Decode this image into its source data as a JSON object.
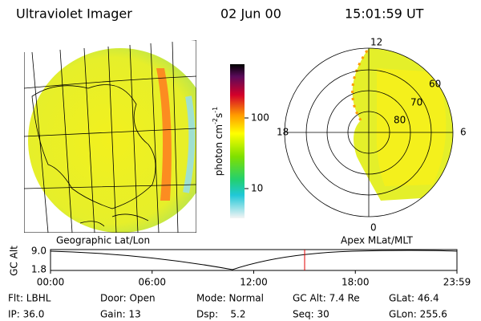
{
  "header": {
    "instrument": "Ultraviolet Imager",
    "date": "02 Jun 00",
    "time": "15:01:59 UT"
  },
  "colorbar": {
    "label": "photon cm",
    "exp1": "-2",
    "unit2": "s",
    "exp2": "-1",
    "ticks": [
      "100",
      "10"
    ]
  },
  "polar": {
    "mlt": [
      "12",
      "18",
      "6",
      "0"
    ],
    "mlat": [
      "60",
      "70",
      "80"
    ]
  },
  "timeline": {
    "left_label": "Geographic Lat/Lon",
    "right_label": "Apex MLat/MLT",
    "y_label": "GC Alt",
    "y_max": "9.0",
    "y_min": "1.8",
    "times": [
      "00:00",
      "06:00",
      "12:00",
      "18:00",
      "23:59"
    ]
  },
  "status": [
    [
      "Flt: LBHL",
      "Door: Open",
      "Mode: Normal",
      "GC Alt: 7.4 Re",
      "GLat: 46.4"
    ],
    [
      "IP: 36.0",
      "Gain: 13",
      "Dsp:    5.2",
      "Seq: 30",
      "GLon: 255.6"
    ]
  ]
}
